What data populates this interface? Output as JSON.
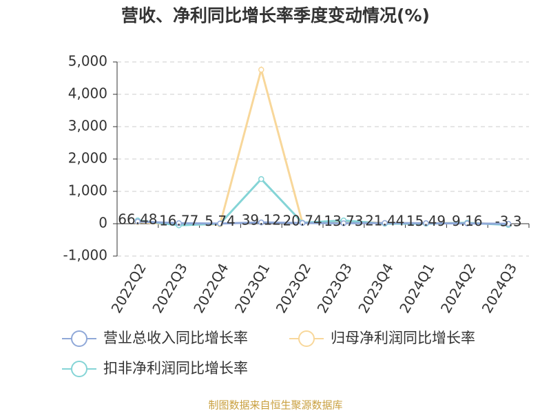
{
  "chart_data": {
    "type": "line",
    "title": "营收、净利同比增长率季度变动情况(%)",
    "categories": [
      "2022Q2",
      "2022Q3",
      "2022Q4",
      "2023Q1",
      "2023Q2",
      "2023Q3",
      "2023Q4",
      "2024Q1",
      "2024Q2",
      "2024Q3"
    ],
    "series": [
      {
        "name": "营业总收入同比增长率",
        "color": "#8fa8d8",
        "values": [
          66.48,
          16.77,
          5.74,
          39.12,
          20.74,
          13.73,
          21.44,
          15.49,
          9.16,
          -3.3
        ]
      },
      {
        "name": "归母净利润同比增长率",
        "color": "#f8d79a",
        "values": [
          50,
          -30,
          -20,
          4760,
          30,
          80,
          20,
          10,
          30,
          -30
        ]
      },
      {
        "name": "扣非净利润同比增长率",
        "color": "#84d4d6",
        "values": [
          100,
          -50,
          0,
          1380,
          30,
          100,
          0,
          0,
          30,
          -40
        ]
      }
    ],
    "ylim": [
      -1000,
      5000
    ],
    "yticks": [
      {
        "value": -1000,
        "label": "-1,000"
      },
      0,
      {
        "value": 1000,
        "label": "1,000"
      },
      {
        "value": 2000,
        "label": "2,000"
      },
      {
        "value": 3000,
        "label": "3,000"
      },
      {
        "value": 4000,
        "label": "4,000"
      },
      {
        "value": 5000,
        "label": "5,000"
      }
    ],
    "grid": true,
    "source": "制图数据来自恒生聚源数据库"
  }
}
